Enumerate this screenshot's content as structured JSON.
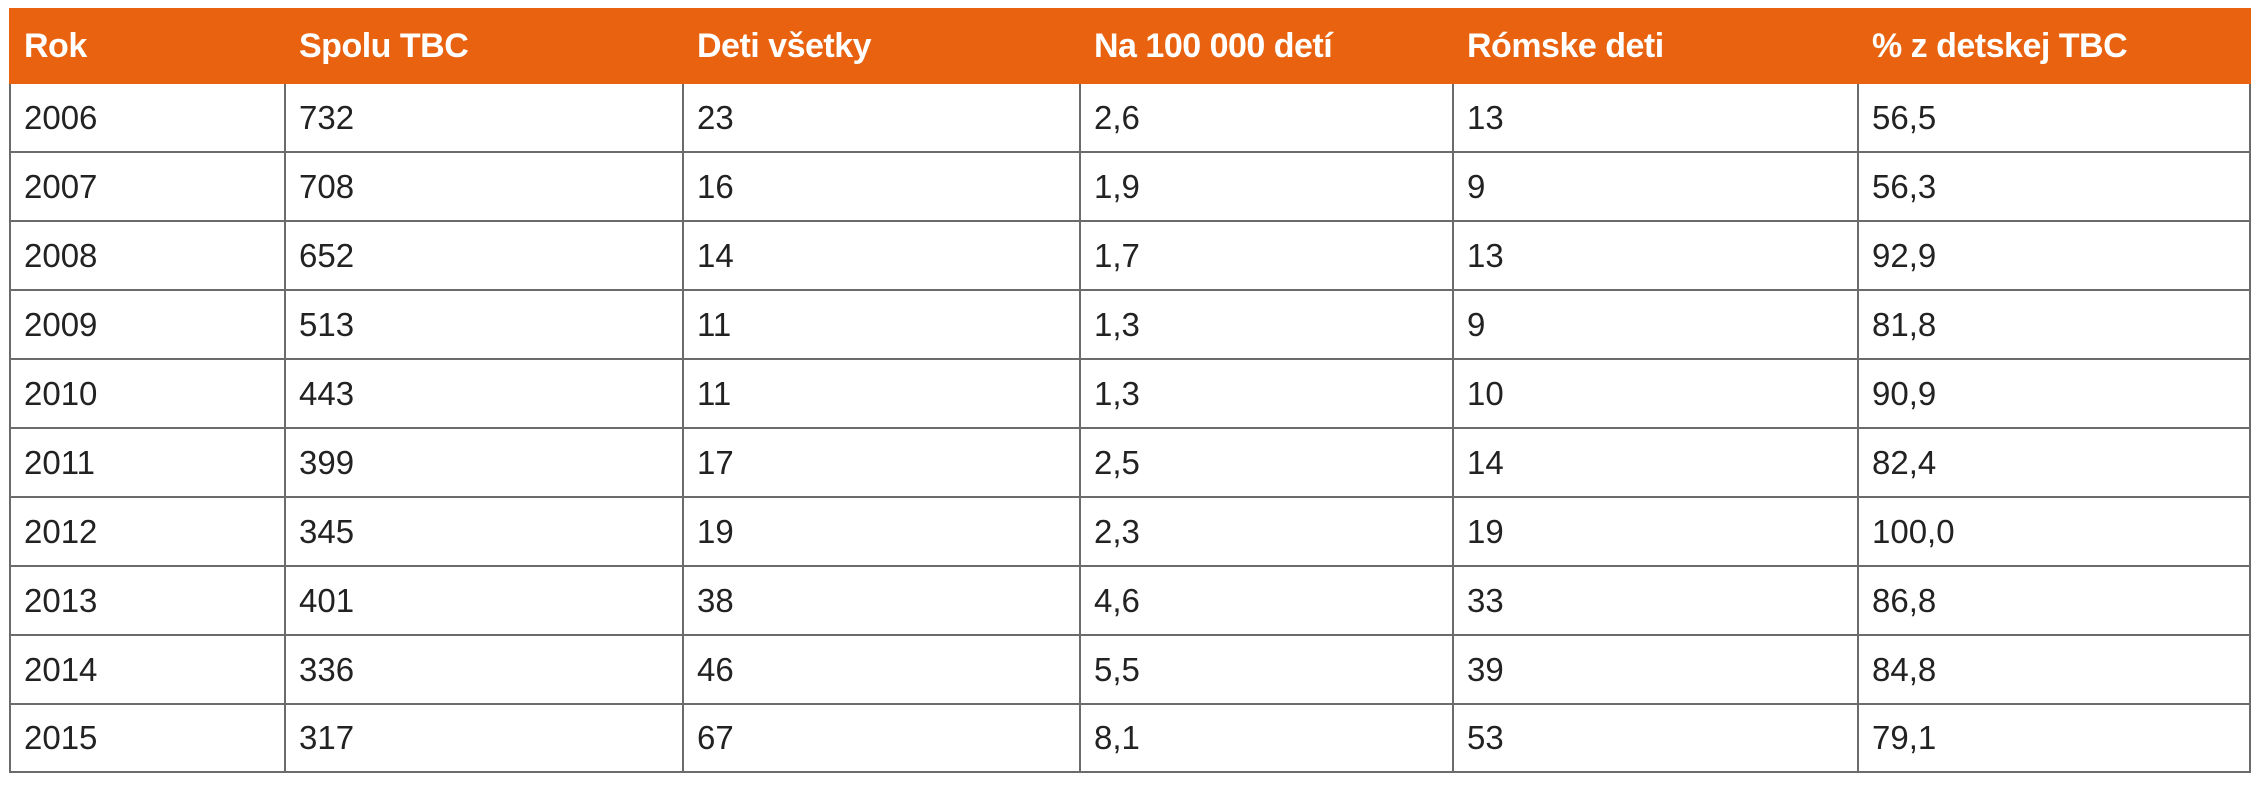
{
  "table": {
    "columns": [
      "Rok",
      "Spolu TBC",
      "Deti všetky",
      "Na 100 000 detí",
      "Rómske deti",
      "% z detskej TBC"
    ],
    "rows": [
      [
        "2006",
        "732",
        "23",
        "2,6",
        "13",
        "56,5"
      ],
      [
        "2007",
        "708",
        "16",
        "1,9",
        "9",
        "56,3"
      ],
      [
        "2008",
        "652",
        "14",
        "1,7",
        "13",
        "92,9"
      ],
      [
        "2009",
        "513",
        "11",
        "1,3",
        "9",
        "81,8"
      ],
      [
        "2010",
        "443",
        "11",
        "1,3",
        "10",
        "90,9"
      ],
      [
        "2011",
        "399",
        "17",
        "2,5",
        "14",
        "82,4"
      ],
      [
        "2012",
        "345",
        "19",
        "2,3",
        "19",
        "100,0"
      ],
      [
        "2013",
        "401",
        "38",
        "4,6",
        "33",
        "86,8"
      ],
      [
        "2014",
        "336",
        "46",
        "5,5",
        "39",
        "84,8"
      ],
      [
        "2015",
        "317",
        "67",
        "8,1",
        "53",
        "79,1"
      ]
    ]
  },
  "colors": {
    "header_background": "#e8620f",
    "header_text": "#ffffff",
    "grid_line": "#6b6b6b",
    "body_text": "#222222"
  }
}
